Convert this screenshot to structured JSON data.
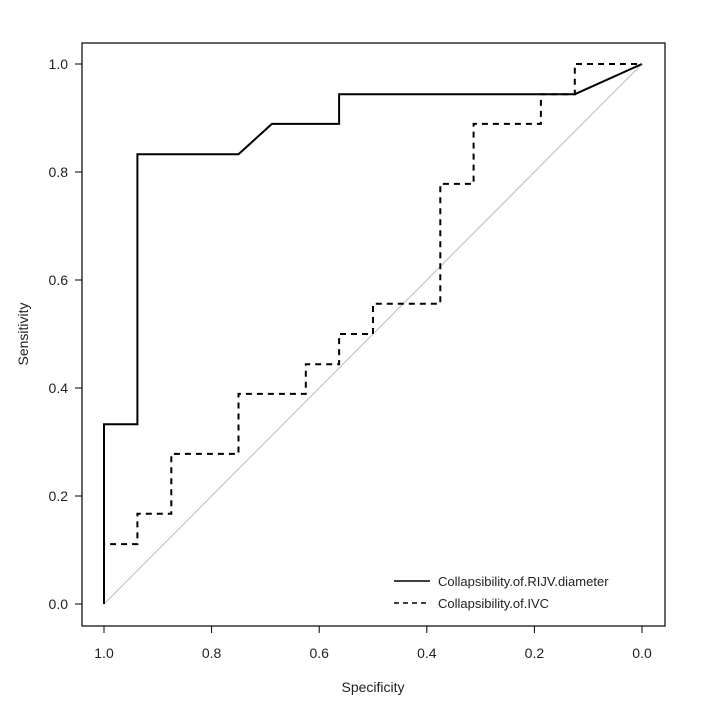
{
  "chart_data": {
    "type": "line",
    "xlabel": "Specificity",
    "ylabel": "Sensitivity",
    "xlim": [
      1.0,
      0.0
    ],
    "ylim": [
      0.0,
      1.0
    ],
    "x_reversed": true,
    "grid": false,
    "legend_position": "bottom-right",
    "x_ticks": [
      {
        "value": 1.0,
        "label": "1.0"
      },
      {
        "value": 0.8,
        "label": "0.8"
      },
      {
        "value": 0.6,
        "label": "0.6"
      },
      {
        "value": 0.4,
        "label": "0.4"
      },
      {
        "value": 0.2,
        "label": "0.2"
      },
      {
        "value": 0.0,
        "label": "0.0"
      }
    ],
    "y_ticks": [
      {
        "value": 0.0,
        "label": "0.0"
      },
      {
        "value": 0.2,
        "label": "0.2"
      },
      {
        "value": 0.4,
        "label": "0.4"
      },
      {
        "value": 0.6,
        "label": "0.6"
      },
      {
        "value": 0.8,
        "label": "0.8"
      },
      {
        "value": 1.0,
        "label": "1.0"
      }
    ],
    "reference_line": {
      "x": [
        1.0,
        0.0
      ],
      "y": [
        0.0,
        1.0
      ],
      "color": "#bbbbbb"
    },
    "series": [
      {
        "name": "Collapsibility.of.RIJV.diameter",
        "style": "solid",
        "color": "#000000",
        "x": [
          1.0,
          1.0,
          0.938,
          0.938,
          0.75,
          0.688,
          0.563,
          0.563,
          0.125,
          0.0
        ],
        "y": [
          0.0,
          0.333,
          0.333,
          0.833,
          0.833,
          0.889,
          0.889,
          0.944,
          0.944,
          1.0
        ]
      },
      {
        "name": "Collapsibility.of.IVC",
        "style": "dashed",
        "color": "#000000",
        "x": [
          1.0,
          1.0,
          0.938,
          0.938,
          0.875,
          0.875,
          0.75,
          0.75,
          0.625,
          0.625,
          0.563,
          0.563,
          0.5,
          0.5,
          0.375,
          0.375,
          0.313,
          0.313,
          0.188,
          0.188,
          0.125,
          0.125,
          0.0
        ],
        "y": [
          0.0,
          0.111,
          0.111,
          0.167,
          0.167,
          0.278,
          0.278,
          0.389,
          0.389,
          0.444,
          0.444,
          0.5,
          0.5,
          0.556,
          0.556,
          0.778,
          0.778,
          0.889,
          0.889,
          0.944,
          0.944,
          1.0,
          1.0
        ]
      }
    ]
  }
}
